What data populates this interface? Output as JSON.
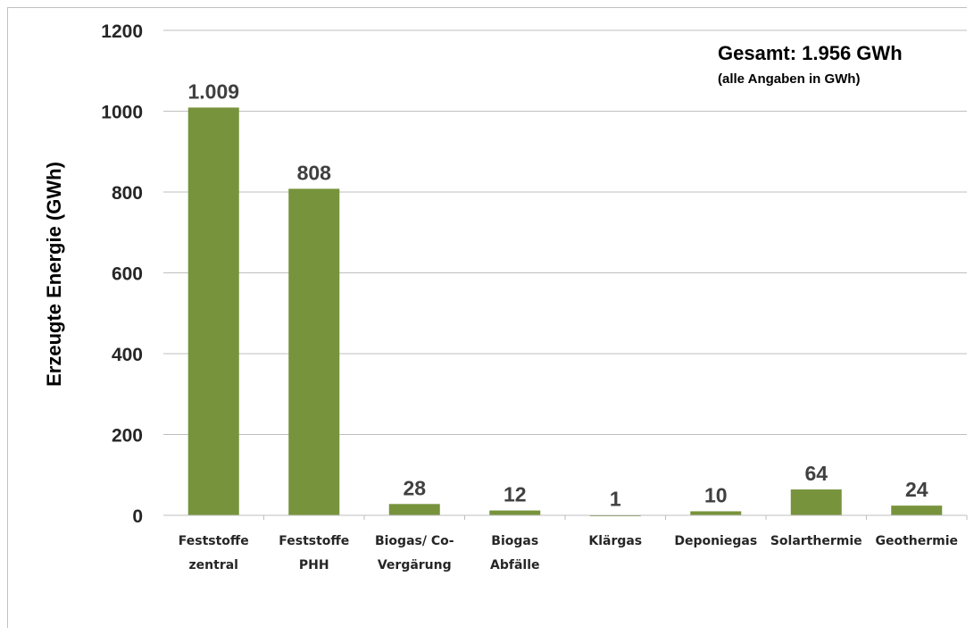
{
  "chart_data": {
    "type": "bar",
    "ylabel": "Erzeugte Energie (GWh)",
    "ylim": [
      0,
      1200
    ],
    "yticks": [
      0,
      200,
      400,
      600,
      800,
      1000,
      1200
    ],
    "grid": true,
    "categories": [
      [
        "Feststoffe",
        "zentral"
      ],
      [
        "Feststoffe",
        "PHH"
      ],
      [
        "Biogas/ Co-",
        "Vergärung"
      ],
      [
        "Biogas",
        "Abfälle"
      ],
      [
        "Klärgas"
      ],
      [
        "Deponiegas"
      ],
      [
        "Solarthermie"
      ],
      [
        "Geothermie"
      ]
    ],
    "values": [
      1009,
      808,
      28,
      12,
      1,
      10,
      64,
      24
    ],
    "data_labels": [
      "1.009",
      "808",
      "28",
      "12",
      "1",
      "10",
      "64",
      "24"
    ],
    "bar_color": "#77933c",
    "annotations": {
      "total": "Gesamt: 1.956 GWh",
      "note": "(alle Angaben in GWh)"
    }
  }
}
